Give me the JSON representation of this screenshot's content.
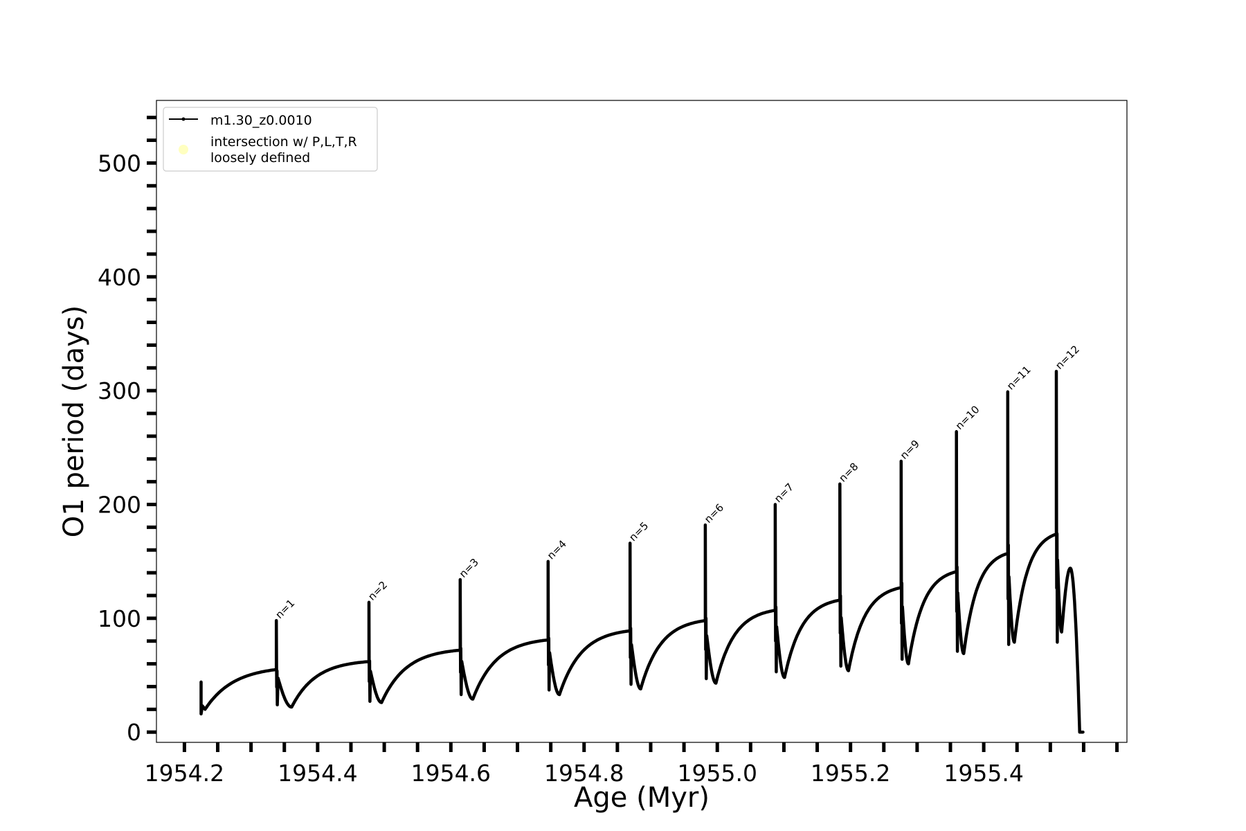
{
  "chart_data": {
    "type": "line",
    "xlabel": "Age (Myr)",
    "ylabel": "O1 period (days)",
    "xlim": [
      1954.158,
      1955.615
    ],
    "ylim": [
      -9,
      555
    ],
    "x_ticks_major": [
      1954.2,
      1954.4,
      1954.6,
      1954.8,
      1955.0,
      1955.2,
      1955.4
    ],
    "x_tick_labels": [
      "1954.2",
      "1954.4",
      "1954.6",
      "1954.8",
      "1955.0",
      "1955.2",
      "1955.4"
    ],
    "x_minor_step": 0.05,
    "y_ticks_major": [
      0,
      100,
      200,
      300,
      400,
      500
    ],
    "y_tick_labels": [
      "0",
      "100",
      "200",
      "300",
      "400",
      "500"
    ],
    "y_minor_step": 20,
    "grid": false,
    "legend": {
      "placement": "upper-left",
      "entries": [
        {
          "label": "m1.30_z0.0010",
          "marker": "line-with-dot",
          "color": "#000000"
        },
        {
          "label_line1": "intersection w/ P,L,T,R",
          "label_line2": "loosely defined",
          "marker": "circle",
          "color": "#ffffc0"
        }
      ]
    },
    "series_color": "#000000",
    "start": {
      "age": 1954.225,
      "spike": 44,
      "low": 16,
      "value": 20
    },
    "pulses": [
      {
        "label": "n=1",
        "age": 1954.338,
        "pre": 55,
        "peak": 98,
        "bottom": 24,
        "min": 22,
        "min_age": 1954.361
      },
      {
        "label": "n=2",
        "age": 1954.477,
        "pre": 62,
        "peak": 114,
        "bottom": 27,
        "min": 26,
        "min_age": 1954.496
      },
      {
        "label": "n=3",
        "age": 1954.614,
        "pre": 72,
        "peak": 134,
        "bottom": 33,
        "min": 29,
        "min_age": 1954.633
      },
      {
        "label": "n=4",
        "age": 1954.746,
        "pre": 81,
        "peak": 150,
        "bottom": 37,
        "min": 33,
        "min_age": 1954.763
      },
      {
        "label": "n=5",
        "age": 1954.869,
        "pre": 89,
        "peak": 166,
        "bottom": 42,
        "min": 38,
        "min_age": 1954.885
      },
      {
        "label": "n=6",
        "age": 1954.982,
        "pre": 98,
        "peak": 182,
        "bottom": 47,
        "min": 43,
        "min_age": 1954.998
      },
      {
        "label": "n=7",
        "age": 1955.087,
        "pre": 107,
        "peak": 200,
        "bottom": 53,
        "min": 48,
        "min_age": 1955.101
      },
      {
        "label": "n=8",
        "age": 1955.184,
        "pre": 116,
        "peak": 218,
        "bottom": 58,
        "min": 54,
        "min_age": 1955.197
      },
      {
        "label": "n=9",
        "age": 1955.276,
        "pre": 127,
        "peak": 238,
        "bottom": 64,
        "min": 60,
        "min_age": 1955.287
      },
      {
        "label": "n=10",
        "age": 1955.359,
        "pre": 141,
        "peak": 264,
        "bottom": 71,
        "min": 69,
        "min_age": 1955.37
      },
      {
        "label": "n=11",
        "age": 1955.436,
        "pre": 157,
        "peak": 299,
        "bottom": 77,
        "min": 79,
        "min_age": 1955.446
      },
      {
        "label": "n=12",
        "age": 1955.509,
        "pre": 174,
        "peak": 317,
        "bottom": 79,
        "min": 88,
        "min_age": 1955.517
      }
    ],
    "end": {
      "max": 144,
      "max_age": 1955.53,
      "zero_age": 1955.544,
      "final_age": 1955.549
    }
  }
}
